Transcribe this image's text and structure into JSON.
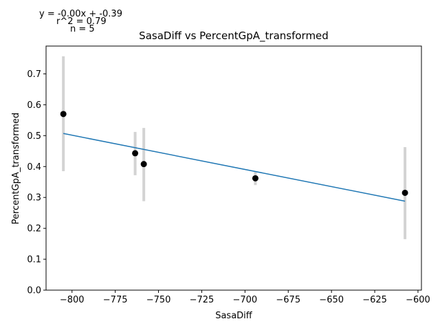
{
  "chart_data": {
    "type": "scatter",
    "title": "SasaDiff vs PercentGpA_transformed",
    "xlabel": "SasaDiff",
    "ylabel": "PercentGpA_transformed",
    "xlim": [
      -815,
      -598
    ],
    "ylim": [
      0,
      0.79
    ],
    "xticks": [
      -800,
      -775,
      -750,
      -725,
      -700,
      -675,
      -650,
      -625,
      -600
    ],
    "xtick_labels": [
      "−800",
      "−775",
      "−750",
      "−725",
      "−700",
      "−675",
      "−650",
      "−625",
      "−600"
    ],
    "yticks": [
      0.0,
      0.1,
      0.2,
      0.3,
      0.4,
      0.5,
      0.6,
      0.7
    ],
    "ytick_labels": [
      "0.0",
      "0.1",
      "0.2",
      "0.3",
      "0.4",
      "0.5",
      "0.6",
      "0.7"
    ],
    "points": [
      {
        "x": -805,
        "y": 0.57,
        "err_low": 0.385,
        "err_high": 0.757
      },
      {
        "x": -763.5,
        "y": 0.443,
        "err_low": 0.372,
        "err_high": 0.512
      },
      {
        "x": -758.5,
        "y": 0.408,
        "err_low": 0.288,
        "err_high": 0.525
      },
      {
        "x": -694,
        "y": 0.362,
        "err_low": 0.34,
        "err_high": 0.385
      },
      {
        "x": -607.5,
        "y": 0.315,
        "err_low": 0.165,
        "err_high": 0.463
      }
    ],
    "fit_line": {
      "x": [
        -805,
        -607.5
      ],
      "y": [
        0.507,
        0.288
      ]
    },
    "annotations": {
      "equation": "y = -0.00x + -0.39",
      "r2": "r^2 = 0.79",
      "n": "n = 5"
    },
    "colors": {
      "points": "#000000",
      "errorbars": "#d3d3d3",
      "fit": "#1f77b4"
    }
  }
}
